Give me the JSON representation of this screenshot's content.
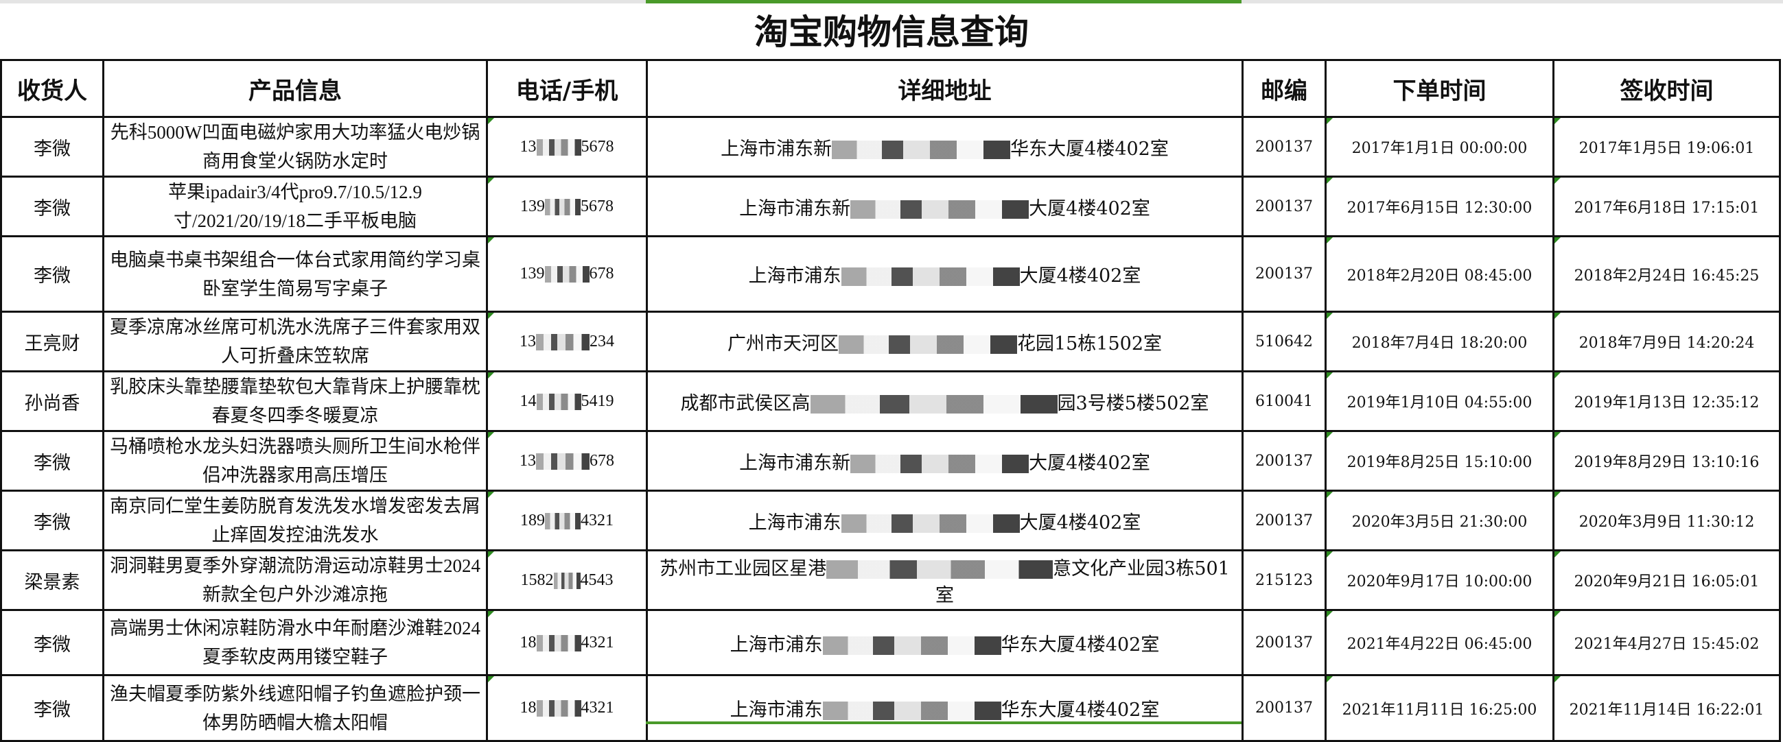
{
  "title": "淘宝购物信息查询",
  "accent_color": "#4a9a2a",
  "headers": [
    "收货人",
    "产品信息",
    "电话/手机",
    "详细地址",
    "邮编",
    "下单时间",
    "签收时间"
  ],
  "rows": [
    {
      "name": "李微",
      "product": "先科5000W凹面电磁炉家用大功率猛火电炒锅商用食堂火锅防水定时",
      "phone_prefix": "13",
      "phone_suffix": "5678",
      "addr_prefix": "上海市浦东新",
      "addr_suffix": "华东大厦4楼402室",
      "zip": "200137",
      "order_time": "2017年1月1日  00:00:00",
      "sign_time": "2017年1月5日  19:06:01"
    },
    {
      "name": "李微",
      "product": "苹果ipadair3/4代pro9.7/10.5/12.9寸/2021/20/19/18二手平板电脑",
      "phone_prefix": "139",
      "phone_suffix": "5678",
      "addr_prefix": "上海市浦东新",
      "addr_suffix": "大厦4楼402室",
      "zip": "200137",
      "order_time": "2017年6月15日  12:30:00",
      "sign_time": "2017年6月18日  17:15:01"
    },
    {
      "name": "李微",
      "product": "电脑桌书桌书架组合一体台式家用简约学习桌卧室学生简易写字桌子",
      "phone_prefix": "139",
      "phone_suffix": "678",
      "addr_prefix": "上海市浦东",
      "addr_suffix": "大厦4楼402室",
      "zip": "200137",
      "order_time": "2018年2月20日  08:45:00",
      "sign_time": "2018年2月24日  16:45:25"
    },
    {
      "name": "王亮财",
      "product": "夏季凉席冰丝席可机洗水洗席子三件套家用双人可折叠床笠软席",
      "phone_prefix": "13",
      "phone_suffix": "234",
      "addr_prefix": "广州市天河区",
      "addr_suffix": "花园15栋1502室",
      "zip": "510642",
      "order_time": "2018年7月4日  18:20:00",
      "sign_time": "2018年7月9日  14:20:24"
    },
    {
      "name": "孙尚香",
      "product": "乳胶床头靠垫腰靠垫软包大靠背床上护腰靠枕春夏冬四季冬暖夏凉",
      "phone_prefix": "14",
      "phone_suffix": "5419",
      "addr_prefix": "成都市武侯区高",
      "addr_suffix": "园3号楼5楼502室",
      "zip": "610041",
      "order_time": "2019年1月10日  04:55:00",
      "sign_time": "2019年1月13日  12:35:12"
    },
    {
      "name": "李微",
      "product": "马桶喷枪水龙头妇洗器喷头厕所卫生间水枪伴侣冲洗器家用高压增压",
      "phone_prefix": "13",
      "phone_suffix": "678",
      "addr_prefix": "上海市浦东新",
      "addr_suffix": "大厦4楼402室",
      "zip": "200137",
      "order_time": "2019年8月25日  15:10:00",
      "sign_time": "2019年8月29日  13:10:16"
    },
    {
      "name": "李微",
      "product": "南京同仁堂生姜防脱育发洗发水增发密发去屑止痒固发控油洗发水",
      "phone_prefix": "189",
      "phone_suffix": "4321",
      "addr_prefix": "上海市浦东",
      "addr_suffix": "大厦4楼402室",
      "zip": "200137",
      "order_time": "2020年3月5日  21:30:00",
      "sign_time": "2020年3月9日  11:30:12"
    },
    {
      "name": "梁景素",
      "product": "洞洞鞋男夏季外穿潮流防滑运动凉鞋男士2024新款全包户外沙滩凉拖",
      "phone_prefix": "1582",
      "phone_suffix": "4543",
      "addr_prefix": "苏州市工业园区星港",
      "addr_suffix": "意文化产业园3栋501室",
      "zip": "215123",
      "order_time": "2020年9月17日  10:00:00",
      "sign_time": "2020年9月21日  16:05:01"
    },
    {
      "name": "李微",
      "product": "高端男士休闲凉鞋防滑水中年耐磨沙滩鞋2024夏季软皮两用镂空鞋子",
      "phone_prefix": "18",
      "phone_suffix": "4321",
      "addr_prefix": "上海市浦东",
      "addr_suffix": "华东大厦4楼402室",
      "zip": "200137",
      "order_time": "2021年4月22日  06:45:00",
      "sign_time": "2021年4月27日  15:45:02"
    },
    {
      "name": "李微",
      "product": "渔夫帽夏季防紫外线遮阳帽子钓鱼遮脸护颈一体男防晒帽大檐太阳帽",
      "phone_prefix": "18",
      "phone_suffix": "4321",
      "addr_prefix": "上海市浦东",
      "addr_suffix": "华东大厦4楼402室",
      "zip": "200137",
      "order_time": "2021年11月11日  16:25:00",
      "sign_time": "2021年11月14日  16:22:01"
    }
  ]
}
